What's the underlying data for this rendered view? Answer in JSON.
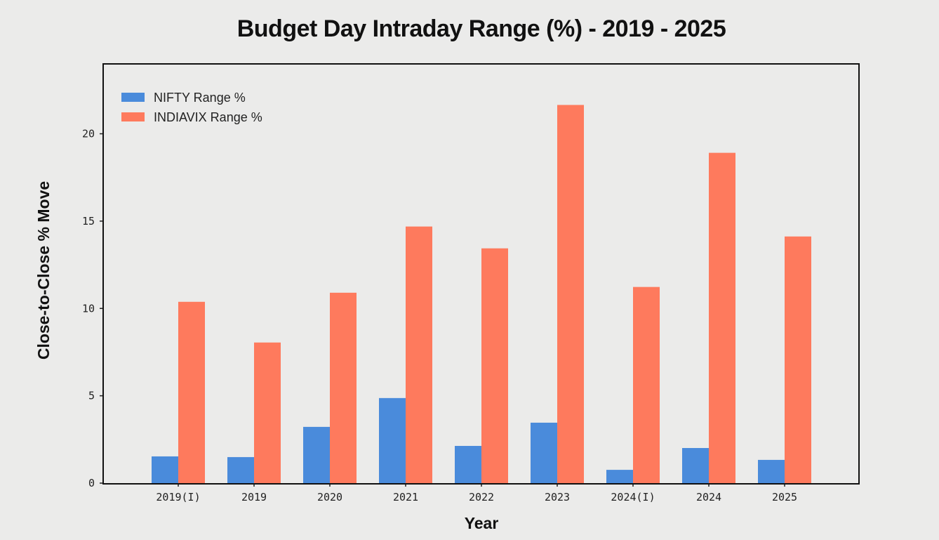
{
  "chart_data": {
    "type": "bar",
    "title": "Budget Day Intraday Range (%) - 2019 - 2025",
    "xlabel": "Year",
    "ylabel": "Close-to-Close % Move",
    "categories": [
      "2019(I)",
      "2019",
      "2020",
      "2021",
      "2022",
      "2023",
      "2024(I)",
      "2024",
      "2025"
    ],
    "series": [
      {
        "name": "NIFTY Range %",
        "color": "#4a8bdb",
        "values": [
          1.53,
          1.49,
          3.22,
          4.87,
          2.13,
          3.46,
          0.76,
          2.01,
          1.33
        ]
      },
      {
        "name": "INDIAVIX Range %",
        "color": "#fe7a5d",
        "values": [
          10.38,
          8.05,
          10.9,
          14.69,
          13.44,
          21.65,
          11.23,
          18.91,
          14.12
        ]
      }
    ],
    "ylim": [
      0,
      24
    ],
    "yticks": [
      0,
      5,
      10,
      15,
      20
    ],
    "grid": false,
    "legend": "top-left"
  }
}
